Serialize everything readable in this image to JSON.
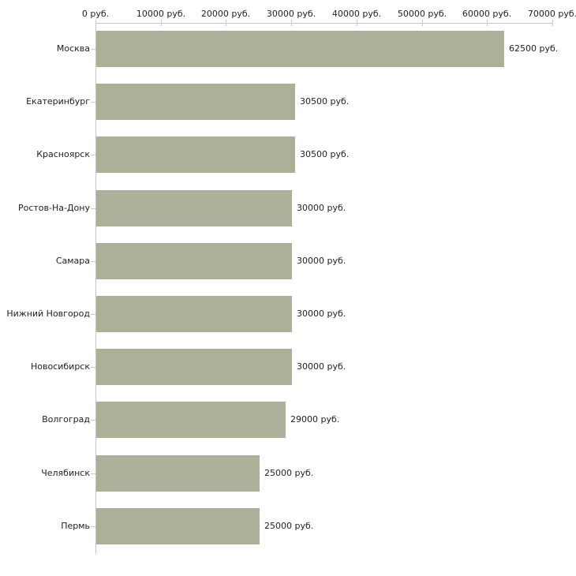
{
  "chart_data": {
    "type": "bar",
    "orientation": "horizontal",
    "title": "",
    "categories": [
      "Москва",
      "Екатеринбург",
      "Красноярск",
      "Ростов-На-Дону",
      "Самара",
      "Нижний Новгород",
      "Новосибирск",
      "Волгоград",
      "Челябинск",
      "Пермь"
    ],
    "values": [
      62500,
      30500,
      30500,
      30000,
      30000,
      30000,
      30000,
      29000,
      25000,
      25000
    ],
    "bar_labels": [
      "62500 руб.",
      "30500 руб.",
      "30500 руб.",
      "30000 руб.",
      "30000 руб.",
      "30000 руб.",
      "30000 руб.",
      "29000 руб.",
      "25000 руб.",
      "25000 руб."
    ],
    "x_axis": {
      "position": "top",
      "unit": "руб.",
      "min": 0,
      "max": 70000,
      "tick_values": [
        0,
        10000,
        20000,
        30000,
        40000,
        50000,
        60000,
        70000
      ],
      "tick_labels": [
        "0 руб.",
        "10000 руб.",
        "20000 руб.",
        "30000 руб.",
        "40000 руб.",
        "50000 руб.",
        "60000 руб.",
        "70000 руб."
      ]
    },
    "legend": "none",
    "grid": {
      "top_axis": true,
      "left_axis": true,
      "right_axis": false,
      "bottom_axis": false,
      "gridlines": false
    },
    "colors": {
      "bar": "#aab198",
      "axis_line": "#c4c4c4",
      "tick_mark": "#cfcf9f",
      "label_text": "#1f1f1f"
    }
  }
}
